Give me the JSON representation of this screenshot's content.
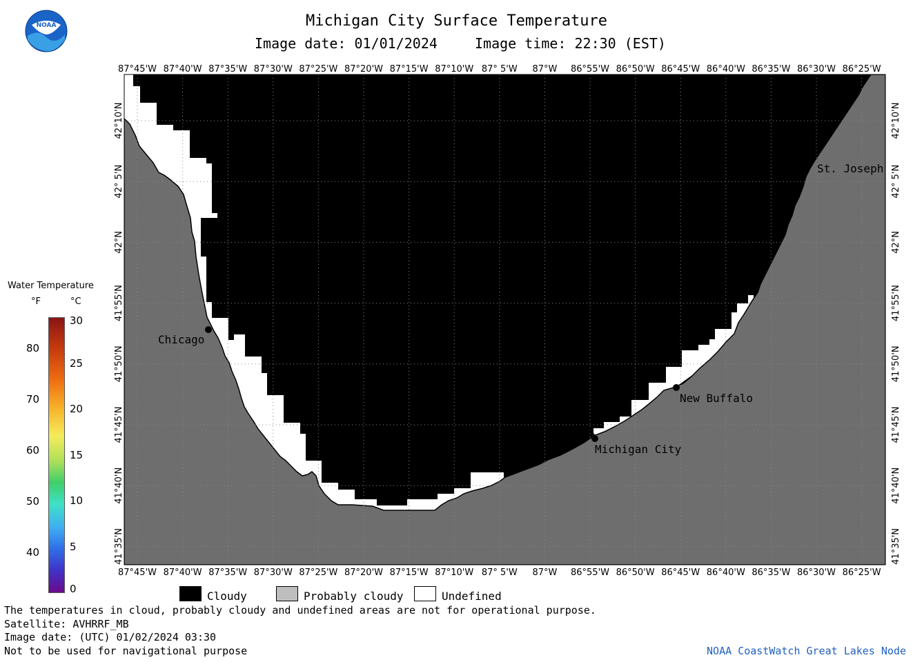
{
  "header": {
    "title": "Michigan City Surface Temperature",
    "image_date": "Image date: 01/01/2024",
    "image_time": "Image time: 22:30 (EST)"
  },
  "logo": {
    "icon": "noaa-logo-icon",
    "text": "NOAA"
  },
  "map": {
    "lon_labels": [
      "87°45'W",
      "87°40'W",
      "87°35'W",
      "87°30'W",
      "87°25'W",
      "87°20'W",
      "87°15'W",
      "87°10'W",
      "87° 5'W",
      "87°W",
      "86°55'W",
      "86°50'W",
      "86°45'W",
      "86°40'W",
      "86°35'W",
      "86°30'W",
      "86°25'W"
    ],
    "lat_labels": [
      "42°10'N",
      "42° 5'N",
      "42°N",
      "41°55'N",
      "41°50'N",
      "41°45'N",
      "41°40'N",
      "41°35'N"
    ],
    "colors": {
      "cloudy": "#000000",
      "land": "#6e6e6e",
      "undefined": "#ffffff",
      "probably_cloudy": "#bebebe"
    },
    "cities": [
      {
        "name": "St. Joseph"
      },
      {
        "name": "Chicago"
      },
      {
        "name": "New Buffalo"
      },
      {
        "name": "Michigan City"
      }
    ]
  },
  "legend": {
    "title": "Water Temperature",
    "unit_f": "°F",
    "unit_c": "°C",
    "f_ticks": [
      "80",
      "70",
      "60",
      "50",
      "40"
    ],
    "c_ticks": [
      "30",
      "25",
      "20",
      "15",
      "10",
      "5",
      "0"
    ]
  },
  "key": {
    "cloudy": "Cloudy",
    "probably_cloudy": "Probably cloudy",
    "undefined": "Undefined"
  },
  "footer": {
    "line1": "The temperatures in cloud, probably cloudy and undefined areas are not for operational purpose.",
    "line2": "Satellite: AVHRRF_MB",
    "line3": "Image date: (UTC) 01/02/2024  03:30",
    "line4": "Not to be used for navigational purpose",
    "credit": "NOAA CoastWatch Great Lakes Node"
  }
}
